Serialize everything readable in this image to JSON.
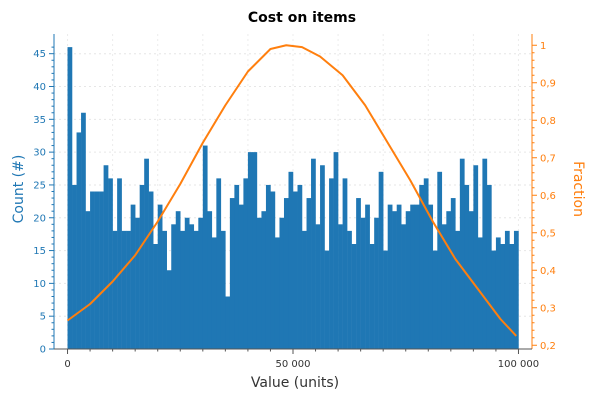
{
  "chart_data": {
    "type": "bar",
    "title": "Cost on items",
    "xlabel": "Value (units)",
    "ylabel_left": "Count (#)",
    "ylabel_right": "Fraction",
    "xlim": [
      -3000,
      103000
    ],
    "ylim_left": [
      0,
      48
    ],
    "ylim_right": [
      0.19,
      1.03
    ],
    "x_ticks": [
      0,
      50000,
      100000
    ],
    "x_tick_labels": [
      "0",
      "50 000",
      "100 000"
    ],
    "y_left_ticks": [
      0,
      5,
      10,
      15,
      20,
      25,
      30,
      35,
      40,
      45
    ],
    "y_right_ticks": [
      0.2,
      0.3,
      0.4,
      0.5,
      0.6,
      0.7,
      0.8,
      0.9,
      1
    ],
    "y_right_tick_labels": [
      "0,2",
      "0,3",
      "0,4",
      "0,5",
      "0,6",
      "0,7",
      "0,8",
      "0,9",
      "1"
    ],
    "grid": true,
    "series": [
      {
        "kind": "histogram",
        "axis": "left",
        "bin_start": 0,
        "bin_width": 1000,
        "values": [
          46,
          25,
          33,
          36,
          21,
          24,
          24,
          24,
          28,
          26,
          18,
          26,
          18,
          18,
          22,
          20,
          25,
          29,
          24,
          16,
          22,
          18,
          12,
          19,
          21,
          18,
          20,
          19,
          18,
          20,
          31,
          21,
          17,
          26,
          18,
          8,
          23,
          25,
          22,
          26,
          30,
          30,
          20,
          21,
          25,
          24,
          17,
          20,
          23,
          27,
          24,
          25,
          18,
          23,
          29,
          19,
          28,
          15,
          26,
          30,
          19,
          26,
          18,
          16,
          23,
          20,
          22,
          16,
          20,
          27,
          15,
          22,
          21,
          22,
          19,
          21,
          22,
          22,
          25,
          26,
          22,
          15,
          27,
          19,
          21,
          23,
          18,
          29,
          25,
          21,
          28,
          17,
          29,
          25,
          15,
          17,
          16,
          18,
          16,
          18
        ],
        "color": "#1f77b4"
      },
      {
        "kind": "line",
        "axis": "right",
        "description_x": [
          0,
          5000,
          10000,
          15000,
          20000,
          25000,
          30000,
          35000,
          40000,
          45000,
          48500,
          52000,
          56000,
          61000,
          66000,
          71000,
          76000,
          81000,
          86000,
          91000,
          96000,
          99500
        ],
        "values": [
          0.266,
          0.31,
          0.37,
          0.44,
          0.53,
          0.63,
          0.74,
          0.84,
          0.93,
          0.99,
          1.0,
          0.995,
          0.97,
          0.92,
          0.84,
          0.74,
          0.64,
          0.53,
          0.43,
          0.35,
          0.27,
          0.225
        ],
        "color": "#ff7f0e"
      }
    ]
  }
}
